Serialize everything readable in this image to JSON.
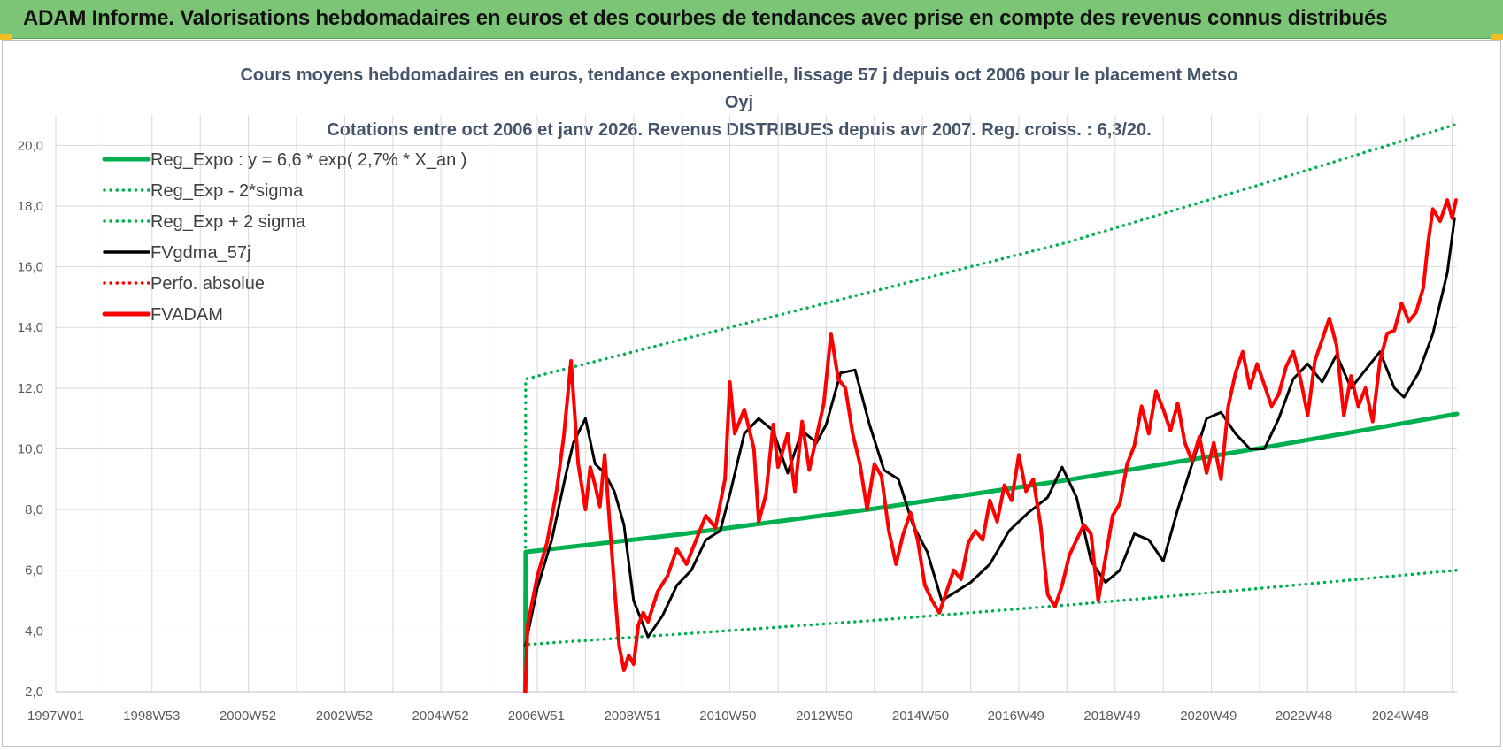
{
  "banner": {
    "title": "ADAM Informe. Valorisations hebdomadaires en euros et des courbes de tendances avec prise en compte des revenus connus distribués"
  },
  "colors": {
    "banner_bg": "#7cc576",
    "title_text": "#44546a",
    "reg_green": "#00b050",
    "fvgdma_black": "#000000",
    "fvadam_red": "#ff0000",
    "grid": "#d9d9d9"
  },
  "chart_data": {
    "type": "line",
    "title": "Cours moyens hebdomadaires en euros, tendance exponentielle, lissage 57 j depuis oct 2006 pour le placement Metso Oyj",
    "subtitle": "Cotations entre oct 2006 et janv 2026. Revenus DISTRIBUES depuis avr 2007. Reg. croiss. : 6,3/20.",
    "xlabel": "",
    "ylabel": "",
    "xlim": [
      1997.0,
      2026.1
    ],
    "ylim": [
      2.0,
      21.0
    ],
    "y_ticks": [
      "2,0",
      "4,0",
      "6,0",
      "8,0",
      "10,0",
      "12,0",
      "14,0",
      "16,0",
      "18,0",
      "20,0"
    ],
    "x_ticks": [
      {
        "label": "1997W01",
        "x": 1997.0
      },
      {
        "label": "1998W53",
        "x": 1998.99
      },
      {
        "label": "2000W52",
        "x": 2000.99
      },
      {
        "label": "2002W52",
        "x": 2002.99
      },
      {
        "label": "2004W52",
        "x": 2004.99
      },
      {
        "label": "2006W51",
        "x": 2006.98
      },
      {
        "label": "2008W51",
        "x": 2008.98
      },
      {
        "label": "2010W50",
        "x": 2010.96
      },
      {
        "label": "2012W50",
        "x": 2012.96
      },
      {
        "label": "2014W50",
        "x": 2014.96
      },
      {
        "label": "2016W49",
        "x": 2016.94
      },
      {
        "label": "2018W49",
        "x": 2018.94
      },
      {
        "label": "2020W49",
        "x": 2020.94
      },
      {
        "label": "2022W48",
        "x": 2022.92
      },
      {
        "label": "2024W48",
        "x": 2024.92
      }
    ],
    "grid": true,
    "legend_position": "top-left",
    "legend": [
      {
        "name": "Reg_Expo : y = 6,6 * exp( 2,7% *  X_an )",
        "color": "#00b050",
        "style": "solid-thick"
      },
      {
        "name": "Reg_Exp - 2*sigma",
        "color": "#00b050",
        "style": "dotted"
      },
      {
        "name": "Reg_Exp + 2 sigma",
        "color": "#00b050",
        "style": "dotted"
      },
      {
        "name": "FVgdma_57j",
        "color": "#000000",
        "style": "solid"
      },
      {
        "name": "Perfo. absolue",
        "color": "#ff0000",
        "style": "dotted"
      },
      {
        "name": "FVADAM",
        "color": "#ff0000",
        "style": "solid-thick"
      }
    ],
    "series": [
      {
        "name": "Reg_Expo : y = 6,6 * exp( 2,7% *  X_an )",
        "x": [
          2006.75,
          2006.76,
          2010,
          2014,
          2018,
          2022,
          2026.1
        ],
        "y": [
          2.0,
          6.6,
          7.19,
          8.03,
          8.97,
          10.02,
          11.15
        ]
      },
      {
        "name": "Reg_Exp - 2*sigma",
        "x": [
          2006.75,
          2006.76,
          2010,
          2014,
          2018,
          2022,
          2026.1
        ],
        "y": [
          2.0,
          3.55,
          3.9,
          4.35,
          4.85,
          5.4,
          6.0
        ]
      },
      {
        "name": "Reg_Exp + 2 sigma",
        "x": [
          2006.75,
          2006.76,
          2010,
          2014,
          2018,
          2022,
          2026.1
        ],
        "y": [
          2.0,
          12.3,
          13.6,
          15.2,
          16.8,
          18.7,
          20.7
        ]
      },
      {
        "name": "FVgdma_57j",
        "x": [
          2006.75,
          2007.0,
          2007.3,
          2007.6,
          2007.75,
          2008.0,
          2008.2,
          2008.4,
          2008.6,
          2008.8,
          2009.0,
          2009.3,
          2009.6,
          2009.9,
          2010.2,
          2010.5,
          2010.8,
          2011.0,
          2011.3,
          2011.6,
          2011.9,
          2012.2,
          2012.5,
          2012.8,
          2013.0,
          2013.3,
          2013.6,
          2013.9,
          2014.2,
          2014.5,
          2014.8,
          2015.1,
          2015.4,
          2015.7,
          2016.0,
          2016.4,
          2016.8,
          2017.2,
          2017.6,
          2017.9,
          2018.2,
          2018.5,
          2018.8,
          2019.1,
          2019.4,
          2019.7,
          2020.0,
          2020.3,
          2020.6,
          2020.9,
          2021.2,
          2021.5,
          2021.8,
          2022.1,
          2022.4,
          2022.7,
          2023.0,
          2023.3,
          2023.6,
          2023.9,
          2024.2,
          2024.5,
          2024.8,
          2025.0,
          2025.3,
          2025.6,
          2025.9,
          2026.05
        ],
        "y": [
          3.5,
          5.4,
          7.0,
          9.2,
          10.2,
          11.0,
          9.5,
          9.2,
          8.6,
          7.5,
          5.0,
          3.8,
          4.5,
          5.5,
          6.0,
          7.0,
          7.3,
          8.5,
          10.5,
          11.0,
          10.6,
          9.2,
          10.6,
          10.2,
          10.8,
          12.5,
          12.6,
          10.8,
          9.3,
          9.0,
          7.5,
          6.6,
          5.0,
          5.3,
          5.6,
          6.2,
          7.3,
          7.9,
          8.4,
          9.4,
          8.4,
          6.3,
          5.6,
          6.0,
          7.2,
          7.0,
          6.3,
          8.0,
          9.5,
          11.0,
          11.2,
          10.5,
          10.0,
          10.0,
          11.0,
          12.3,
          12.8,
          12.2,
          13.1,
          12.0,
          12.6,
          13.2,
          12.0,
          11.7,
          12.5,
          13.8,
          15.8,
          17.6
        ]
      },
      {
        "name": "FVADAM",
        "x": [
          2006.75,
          2006.8,
          2007.0,
          2007.2,
          2007.4,
          2007.55,
          2007.7,
          2007.85,
          2008.0,
          2008.1,
          2008.2,
          2008.3,
          2008.4,
          2008.5,
          2008.6,
          2008.7,
          2008.8,
          2008.9,
          2009.0,
          2009.1,
          2009.2,
          2009.3,
          2009.5,
          2009.7,
          2009.9,
          2010.1,
          2010.3,
          2010.5,
          2010.7,
          2010.9,
          2011.0,
          2011.1,
          2011.3,
          2011.5,
          2011.6,
          2011.75,
          2011.9,
          2012.0,
          2012.2,
          2012.35,
          2012.5,
          2012.65,
          2012.8,
          2012.95,
          2013.1,
          2013.25,
          2013.4,
          2013.55,
          2013.7,
          2013.85,
          2014.0,
          2014.15,
          2014.3,
          2014.45,
          2014.6,
          2014.75,
          2014.9,
          2015.05,
          2015.2,
          2015.35,
          2015.5,
          2015.65,
          2015.8,
          2015.95,
          2016.1,
          2016.25,
          2016.4,
          2016.55,
          2016.7,
          2016.85,
          2017.0,
          2017.15,
          2017.3,
          2017.45,
          2017.6,
          2017.75,
          2017.9,
          2018.05,
          2018.2,
          2018.35,
          2018.5,
          2018.65,
          2018.8,
          2018.95,
          2019.1,
          2019.25,
          2019.4,
          2019.55,
          2019.7,
          2019.85,
          2020.0,
          2020.15,
          2020.3,
          2020.45,
          2020.6,
          2020.75,
          2020.9,
          2021.05,
          2021.2,
          2021.35,
          2021.5,
          2021.65,
          2021.8,
          2021.95,
          2022.1,
          2022.25,
          2022.4,
          2022.55,
          2022.7,
          2022.85,
          2023.0,
          2023.15,
          2023.3,
          2023.45,
          2023.6,
          2023.75,
          2023.9,
          2024.05,
          2024.2,
          2024.35,
          2024.5,
          2024.65,
          2024.8,
          2024.95,
          2025.1,
          2025.25,
          2025.4,
          2025.5,
          2025.6,
          2025.75,
          2025.9,
          2026.0,
          2026.08
        ],
        "y": [
          2.0,
          4.2,
          5.8,
          6.9,
          8.6,
          10.4,
          12.9,
          9.5,
          8.0,
          9.4,
          8.8,
          8.1,
          9.8,
          7.6,
          5.5,
          3.5,
          2.7,
          3.2,
          2.9,
          4.2,
          4.6,
          4.3,
          5.3,
          5.8,
          6.7,
          6.2,
          7.0,
          7.8,
          7.4,
          9.0,
          12.2,
          10.5,
          11.3,
          10.0,
          7.6,
          8.5,
          10.8,
          9.4,
          10.5,
          8.6,
          10.9,
          9.3,
          10.4,
          11.5,
          13.8,
          12.3,
          12.0,
          10.5,
          9.5,
          8.0,
          9.5,
          9.1,
          7.3,
          6.2,
          7.2,
          7.9,
          7.0,
          5.5,
          5.0,
          4.6,
          5.3,
          6.0,
          5.7,
          6.9,
          7.3,
          7.0,
          8.3,
          7.6,
          8.8,
          8.3,
          9.8,
          8.6,
          9.0,
          7.5,
          5.2,
          4.8,
          5.5,
          6.5,
          7.0,
          7.5,
          7.2,
          5.0,
          6.4,
          7.8,
          8.2,
          9.5,
          10.1,
          11.4,
          10.5,
          11.9,
          11.3,
          10.6,
          11.5,
          10.2,
          9.6,
          10.4,
          9.2,
          10.2,
          9.0,
          11.4,
          12.5,
          13.2,
          12.0,
          12.8,
          12.1,
          11.4,
          11.8,
          12.7,
          13.2,
          12.3,
          11.1,
          12.9,
          13.6,
          14.3,
          13.4,
          11.1,
          12.4,
          11.4,
          12.0,
          10.9,
          12.9,
          13.8,
          13.9,
          14.8,
          14.2,
          14.5,
          15.3,
          16.8,
          17.9,
          17.5,
          18.2,
          17.6,
          18.2
        ]
      }
    ]
  }
}
